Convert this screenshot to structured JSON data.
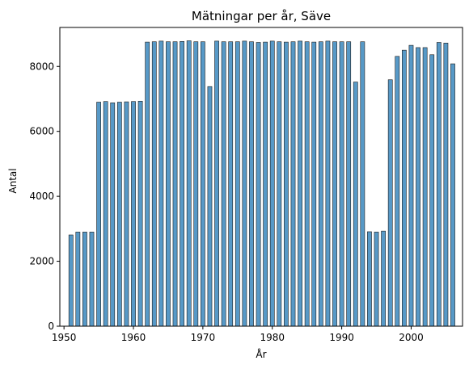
{
  "chart_data": {
    "type": "bar",
    "title": "Mätningar per år, Säve",
    "xlabel": "År",
    "ylabel": "Antal",
    "xlim": [
      1949.4,
      2007.4
    ],
    "ylim": [
      0,
      9200
    ],
    "xticks": [
      1950,
      1960,
      1970,
      1980,
      1990,
      2000
    ],
    "yticks": [
      0,
      2000,
      4000,
      6000,
      8000
    ],
    "grid": false,
    "bar_color": "#5799c7",
    "edge_color": "#1b1b1b",
    "x": [
      1951,
      1952,
      1953,
      1954,
      1955,
      1956,
      1957,
      1958,
      1959,
      1960,
      1961,
      1962,
      1963,
      1964,
      1965,
      1966,
      1967,
      1968,
      1969,
      1970,
      1971,
      1972,
      1973,
      1974,
      1975,
      1976,
      1977,
      1978,
      1979,
      1980,
      1981,
      1982,
      1983,
      1984,
      1985,
      1986,
      1987,
      1988,
      1989,
      1990,
      1991,
      1992,
      1993,
      1994,
      1995,
      1996,
      1997,
      1998,
      1999,
      2000,
      2001,
      2002,
      2003,
      2004,
      2005,
      2006
    ],
    "values": [
      2810,
      2900,
      2900,
      2900,
      6900,
      6920,
      6880,
      6900,
      6910,
      6920,
      6930,
      8750,
      8760,
      8780,
      8760,
      8760,
      8770,
      8790,
      8760,
      8760,
      7380,
      8780,
      8760,
      8760,
      8760,
      8780,
      8760,
      8740,
      8750,
      8780,
      8760,
      8750,
      8760,
      8780,
      8760,
      8750,
      8760,
      8780,
      8760,
      8760,
      8760,
      7520,
      8760,
      2910,
      2900,
      2930,
      7590,
      8310,
      8500,
      8650,
      8580,
      8580,
      8360,
      8740,
      8720,
      8080
    ]
  }
}
